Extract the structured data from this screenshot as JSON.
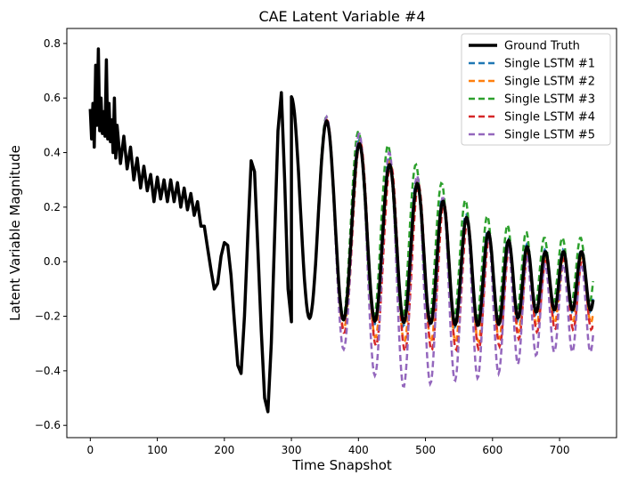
{
  "chart_data": {
    "type": "line",
    "title": "CAE Latent Variable #4",
    "xlabel": "Time Snapshot",
    "ylabel": "Latent Variable Magnitude",
    "xlim": [
      -35,
      785
    ],
    "ylim": [
      -0.645,
      0.855
    ],
    "xticks": [
      0,
      100,
      200,
      300,
      400,
      500,
      600,
      700
    ],
    "yticks": [
      -0.6,
      -0.4,
      -0.2,
      0.0,
      0.2,
      0.4,
      0.6,
      0.8
    ],
    "ytick_labels": [
      "−0.6",
      "−0.4",
      "−0.2",
      "0.0",
      "0.2",
      "0.4",
      "0.6",
      "0.8"
    ],
    "legend_position": "top-right",
    "ground_truth_keypoints": {
      "x": [
        0,
        2,
        4,
        6,
        8,
        10,
        12,
        14,
        16,
        18,
        20,
        22,
        24,
        26,
        28,
        30,
        32,
        34,
        36,
        38,
        40,
        45,
        50,
        55,
        60,
        65,
        70,
        75,
        80,
        85,
        90,
        95,
        100,
        105,
        110,
        115,
        120,
        125,
        130,
        135,
        140,
        145,
        150,
        155,
        160,
        165,
        170,
        175,
        180,
        185,
        190,
        195,
        200,
        205,
        210,
        215,
        220,
        225,
        230,
        235,
        240,
        245,
        250,
        255,
        260,
        265,
        270,
        275,
        280,
        285,
        290,
        295,
        300
      ],
      "y": [
        0.56,
        0.45,
        0.58,
        0.42,
        0.72,
        0.5,
        0.78,
        0.48,
        0.6,
        0.47,
        0.55,
        0.46,
        0.74,
        0.45,
        0.58,
        0.44,
        0.52,
        0.4,
        0.6,
        0.38,
        0.5,
        0.36,
        0.46,
        0.34,
        0.42,
        0.3,
        0.38,
        0.27,
        0.35,
        0.26,
        0.32,
        0.22,
        0.31,
        0.23,
        0.3,
        0.22,
        0.3,
        0.22,
        0.29,
        0.2,
        0.27,
        0.19,
        0.25,
        0.17,
        0.22,
        0.13,
        0.13,
        0.05,
        -0.03,
        -0.1,
        -0.08,
        0.02,
        0.07,
        0.06,
        -0.05,
        -0.22,
        -0.38,
        -0.41,
        -0.2,
        0.1,
        0.37,
        0.33,
        0.05,
        -0.25,
        -0.5,
        -0.55,
        -0.3,
        0.1,
        0.48,
        0.62,
        0.3,
        -0.1,
        -0.22
      ]
    },
    "ground_truth_oscillation": {
      "x_range": [
        300,
        750
      ],
      "amp_start": 0.45,
      "amp_end": 0.12,
      "mean_start": 0.2,
      "mean_end": -0.07,
      "period_start": 55,
      "period_end": 27
    },
    "series": [
      {
        "name": "Ground Truth",
        "color": "#000000",
        "dashed": false,
        "width": 3.5
      },
      {
        "name": "Single LSTM #1",
        "color": "#1f77b4",
        "dashed": true,
        "width": 2.5,
        "amp_scale": 1.05,
        "mean_shift": 0.0,
        "phase_shift": 0.15
      },
      {
        "name": "Single LSTM #2",
        "color": "#ff7f0e",
        "dashed": true,
        "width": 2.5,
        "amp_scale": 1.15,
        "mean_shift": -0.03,
        "phase_shift": -0.1
      },
      {
        "name": "Single LSTM #3",
        "color": "#2ca02c",
        "dashed": true,
        "width": 2.5,
        "amp_scale": 1.1,
        "mean_shift": 0.04,
        "phase_shift": 0.35
      },
      {
        "name": "Single LSTM #4",
        "color": "#d62728",
        "dashed": true,
        "width": 2.5,
        "amp_scale": 1.2,
        "mean_shift": -0.05,
        "phase_shift": -0.25
      },
      {
        "name": "Single LSTM #5",
        "color": "#9467bd",
        "dashed": true,
        "width": 2.5,
        "amp_scale": 1.5,
        "mean_shift": -0.1,
        "phase_shift": 0.05
      }
    ]
  }
}
